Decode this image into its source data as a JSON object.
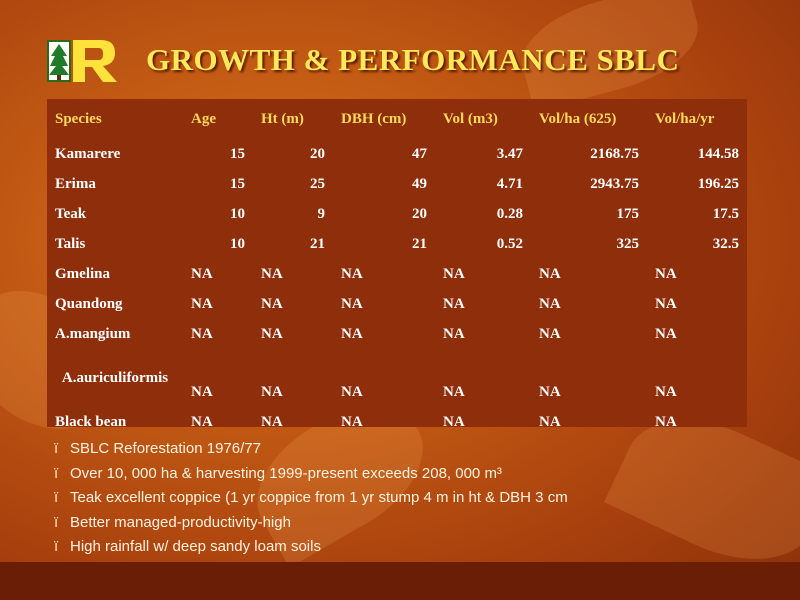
{
  "title": "GROWTH & PERFORMANCE SBLC",
  "logo": {
    "icon": "tree-logo-icon",
    "letter": "R"
  },
  "table": {
    "headers": [
      "Species",
      "Age",
      "Ht (m)",
      "DBH (cm)",
      "Vol (m3)",
      "Vol/ha (625)",
      "Vol/ha/yr"
    ],
    "rows": [
      [
        "Kamarere",
        "15",
        "20",
        "47",
        "3.47",
        "2168.75",
        "144.58"
      ],
      [
        "Erima",
        "15",
        "25",
        "49",
        "4.71",
        "2943.75",
        "196.25"
      ],
      [
        "Teak",
        "10",
        "9",
        "20",
        "0.28",
        "175",
        "17.5"
      ],
      [
        "Talis",
        "10",
        "21",
        "21",
        "0.52",
        "325",
        "32.5"
      ],
      [
        "Gmelina",
        "NA",
        "NA",
        "NA",
        "NA",
        "NA",
        "NA"
      ],
      [
        "Quandong",
        "NA",
        "NA",
        "NA",
        "NA",
        "NA",
        "NA"
      ],
      [
        "A.mangium",
        "NA",
        "NA",
        "NA",
        "NA",
        "NA",
        "NA"
      ],
      [
        "A.auriculiformis",
        "NA",
        "NA",
        "NA",
        "NA",
        "NA",
        "NA"
      ],
      [
        "Black bean",
        "NA",
        "NA",
        "NA",
        "NA",
        "NA",
        "NA"
      ]
    ]
  },
  "bullets": {
    "marker": "ï",
    "items": [
      "SBLC Reforestation 1976/77",
      "Over 10, 000 ha & harvesting 1999-present exceeds 208, 000 m³",
      "Teak excellent coppice (1 yr coppice from 1 yr stump 4 m in ht & DBH 3 cm",
      "Better managed-productivity-high",
      "High rainfall w/ deep sandy loam soils"
    ]
  }
}
